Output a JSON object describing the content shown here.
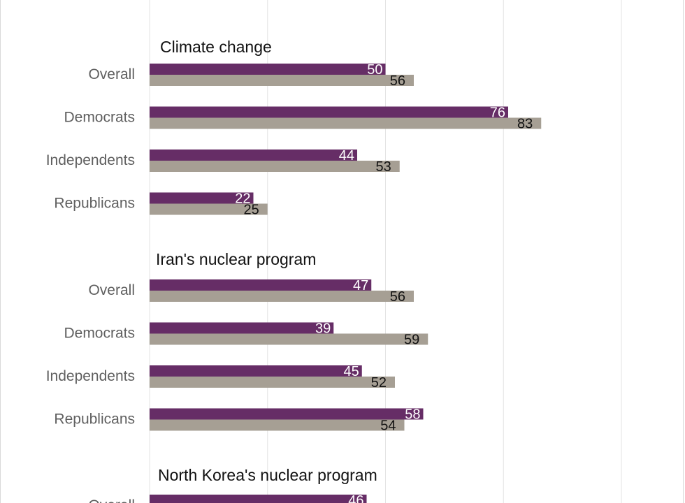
{
  "chart_data": {
    "type": "bar",
    "orientation": "horizontal",
    "xlim": [
      0,
      100
    ],
    "grid": true,
    "colors": {
      "series_a": "#662d66",
      "series_b": "#a69f94"
    },
    "groups": [
      {
        "title": "Climate change",
        "categories": [
          "Overall",
          "Democrats",
          "Independents",
          "Republicans"
        ],
        "series": [
          {
            "values": [
              50,
              76,
              44,
              22
            ]
          },
          {
            "values": [
              56,
              83,
              53,
              25
            ]
          }
        ]
      },
      {
        "title": "Iran's nuclear program",
        "categories": [
          "Overall",
          "Democrats",
          "Independents",
          "Republicans"
        ],
        "series": [
          {
            "values": [
              47,
              39,
              45,
              58
            ]
          },
          {
            "values": [
              56,
              59,
              52,
              54
            ]
          }
        ]
      },
      {
        "title": "North Korea's nuclear program",
        "categories": [
          "Overall"
        ],
        "series": [
          {
            "values": [
              46
            ]
          },
          {
            "values": [
              null
            ]
          }
        ]
      }
    ]
  }
}
